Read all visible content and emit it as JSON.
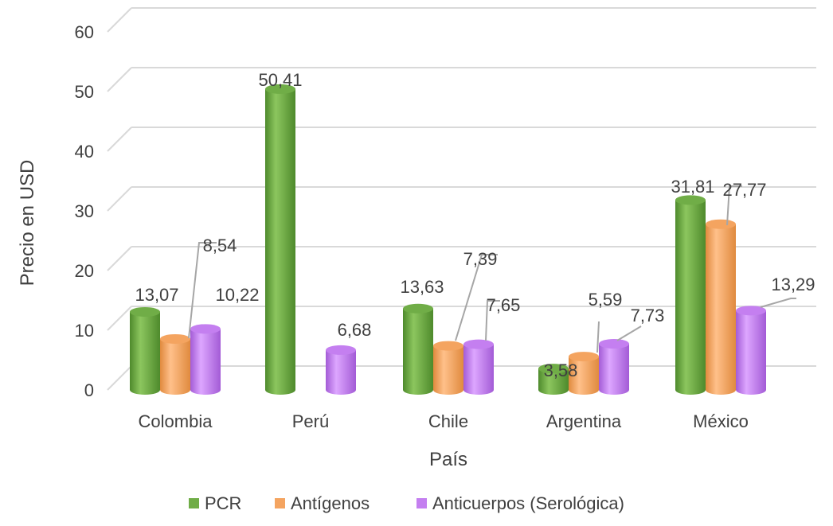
{
  "chart_data": {
    "type": "bar",
    "title": "",
    "xlabel": "País",
    "ylabel": "Precio en USD",
    "ylim": [
      0,
      60
    ],
    "yticks": [
      "0",
      "10",
      "20",
      "30",
      "40",
      "50",
      "60"
    ],
    "grid": true,
    "legend_position": "bottom",
    "categories": [
      "Colombia",
      "Perú",
      "Chile",
      "Argentina",
      "México"
    ],
    "series": [
      {
        "name": "PCR",
        "color": "#70AD47",
        "values": [
          13.07,
          50.41,
          13.63,
          3.58,
          31.81
        ],
        "labels": [
          "13,07",
          "50,41",
          "13,63",
          "3,58",
          "31,81"
        ]
      },
      {
        "name": "Antígenos",
        "color": "#F4A460",
        "values": [
          8.54,
          null,
          7.39,
          5.59,
          27.77
        ],
        "labels": [
          "8,54",
          "",
          "7,39",
          "5,59",
          "27,77"
        ]
      },
      {
        "name": "Anticuerpos (Serológica)",
        "color": "#C47FF0",
        "values": [
          10.22,
          6.68,
          7.65,
          7.73,
          13.29
        ],
        "labels": [
          "10,22",
          "6,68",
          "7,65",
          "7,73",
          "13,29"
        ]
      }
    ]
  }
}
